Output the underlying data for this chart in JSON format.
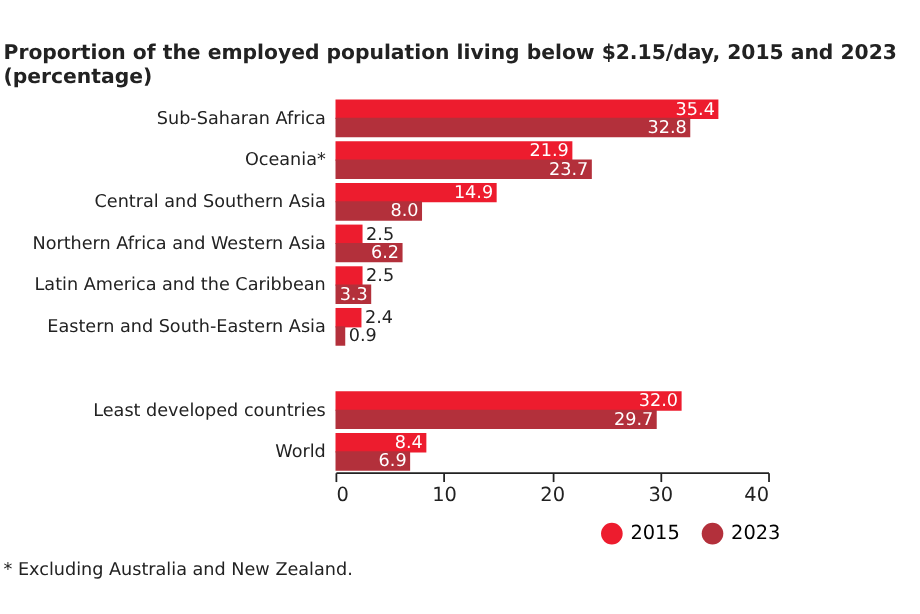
{
  "chart_data": {
    "type": "bar",
    "orientation": "horizontal",
    "title": "Proportion of the employed population living below $2.15/day, 2015 and 2023 (percentage)",
    "categories": [
      "Sub-Saharan Africa",
      "Oceania*",
      "Central and Southern Asia",
      "Northern Africa and Western Asia",
      "Latin America and the Caribbean",
      "Eastern and South-Eastern Asia",
      null,
      "Least developed countries",
      "World"
    ],
    "series": [
      {
        "name": "2015",
        "color": "#ed1c2e",
        "values": [
          35.4,
          21.9,
          14.9,
          2.5,
          2.5,
          2.4,
          null,
          32.0,
          8.4
        ],
        "value_labels": [
          "35.4",
          "21.9",
          "14.9",
          "2.5",
          "2.5",
          "2.4",
          null,
          "32.0",
          "8.4"
        ]
      },
      {
        "name": "2023",
        "color": "#b3303b",
        "values": [
          32.8,
          23.7,
          8.0,
          6.2,
          3.3,
          0.9,
          null,
          29.7,
          6.9
        ],
        "value_labels": [
          "32.8",
          "23.7",
          "8.0",
          "6.2",
          "3.3",
          "0.9",
          null,
          "29.7",
          "6.9"
        ]
      }
    ],
    "xlim": [
      0,
      40
    ],
    "xticks": [
      0,
      10,
      20,
      30,
      40
    ],
    "grid": false,
    "legend": "bottom right",
    "annotations": [
      "* Excluding Australia and New Zealand."
    ]
  }
}
